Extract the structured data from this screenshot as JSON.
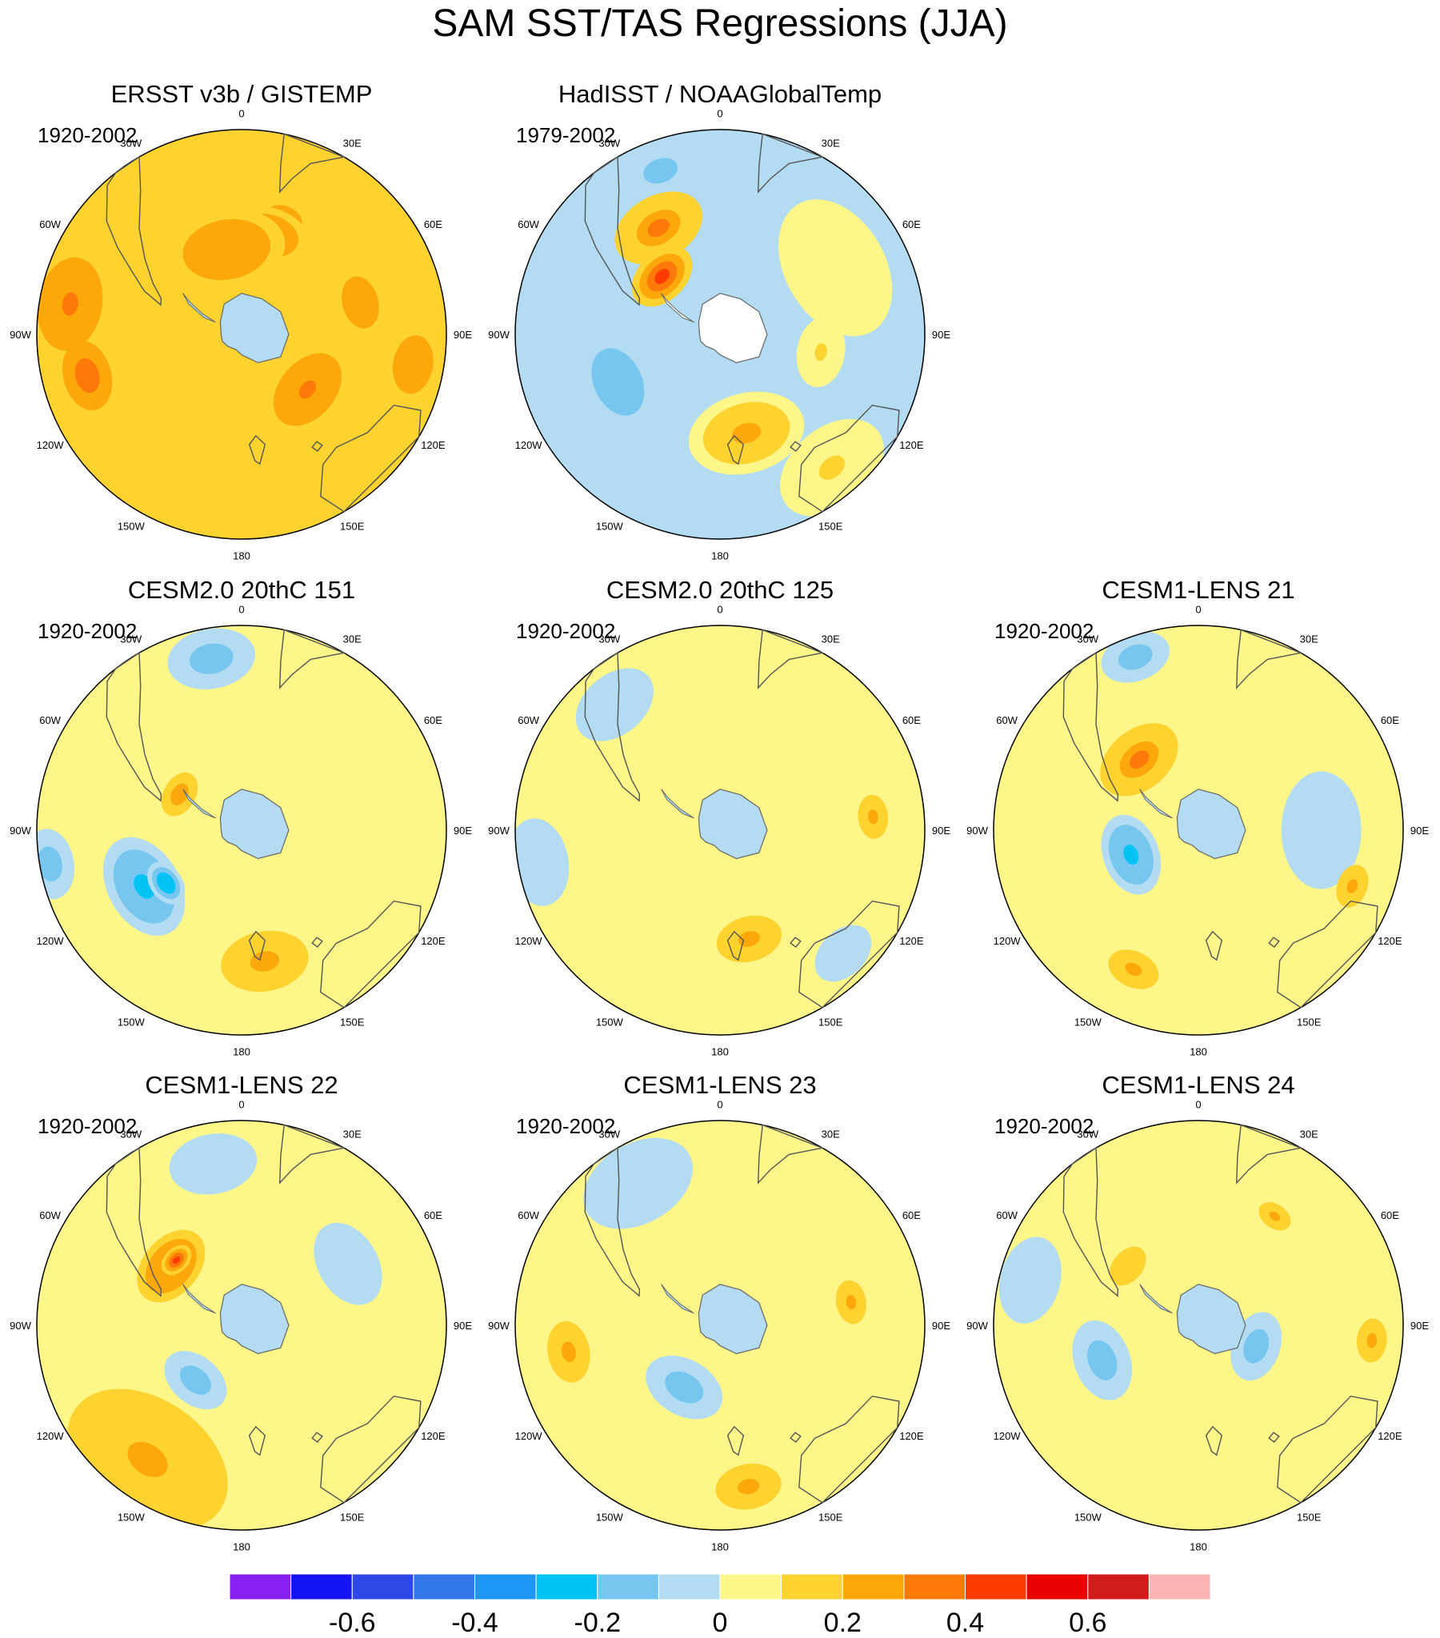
{
  "chart_data": {
    "type": "heatmap",
    "title": "SAM SST/TAS Regressions (JJA)",
    "projection": "south-polar-stereographic",
    "longitude_labels": [
      "0",
      "30E",
      "60E",
      "90E",
      "120E",
      "150E",
      "180",
      "150W",
      "120W",
      "90W",
      "60W",
      "30W"
    ],
    "colorbar": {
      "colors": [
        "#8a1ff2",
        "#1414f5",
        "#2e47e6",
        "#3278e8",
        "#1e96f5",
        "#00c3f5",
        "#76c6f0",
        "#b3dcf2",
        "#fff68a",
        "#fed330",
        "#fda80a",
        "#fd7a0a",
        "#fe3c00",
        "#ea0000",
        "#d21c1c",
        "#fcb4b4"
      ],
      "levels": [
        -0.7,
        -0.6,
        -0.5,
        -0.4,
        -0.3,
        -0.2,
        -0.1,
        0,
        0.1,
        0.2,
        0.3,
        0.4,
        0.5,
        0.6,
        0.7
      ],
      "tick_values": [
        -0.6,
        -0.4,
        -0.2,
        0,
        0.2,
        0.4,
        0.6
      ],
      "tick_labels": [
        "-0.6",
        "-0.4",
        "-0.2",
        "0",
        "0.2",
        "0.4",
        "0.6"
      ]
    },
    "panels": [
      {
        "title": "ERSST v3b / GISTEMP",
        "period": "1920-2002",
        "base": 0.15,
        "features": [
          {
            "lon": 20,
            "r": 0.6,
            "rad": 0.26,
            "v": 0.2
          },
          {
            "lon": 15,
            "r": 0.5,
            "rad": 0.14,
            "v": 0.25
          },
          {
            "lon": -80,
            "r": 0.85,
            "rad": 0.16,
            "v": 0.3
          },
          {
            "lon": -105,
            "r": 0.78,
            "rad": 0.12,
            "v": 0.38
          },
          {
            "lon": 130,
            "r": 0.42,
            "rad": 0.14,
            "v": 0.32
          },
          {
            "lon": 75,
            "r": 0.6,
            "rad": 0.12,
            "v": 0.26
          },
          {
            "lon": -10,
            "r": 0.42,
            "rad": 0.2,
            "v": 0.25
          },
          {
            "lon": -160,
            "r": 0.8,
            "rad": 0.18,
            "v": 0.05
          },
          {
            "lon": 100,
            "r": 0.85,
            "rad": 0.2,
            "v": 0.22
          }
        ]
      },
      {
        "title": "HadISST / NOAAGlobalTemp",
        "period": "1979-2002",
        "base": -0.02,
        "features": [
          {
            "lon": -30,
            "r": 0.6,
            "rad": 0.16,
            "v": 0.35
          },
          {
            "lon": -45,
            "r": 0.4,
            "rad": 0.12,
            "v": 0.4
          },
          {
            "lon": 165,
            "r": 0.5,
            "rad": 0.2,
            "v": 0.25
          },
          {
            "lon": -115,
            "r": 0.55,
            "rad": 0.16,
            "v": -0.18
          },
          {
            "lon": -20,
            "r": 0.85,
            "rad": 0.12,
            "v": -0.16
          },
          {
            "lon": 100,
            "r": 0.5,
            "rad": 0.12,
            "v": 0.12
          },
          {
            "lon": 60,
            "r": 0.65,
            "rad": 0.25,
            "v": 0.08
          },
          {
            "lon": 140,
            "r": 0.85,
            "rad": 0.2,
            "v": 0.1
          }
        ]
      },
      {
        "title": "CESM2.0 20thC 151",
        "period": "1920-2002",
        "base": 0.02,
        "features": [
          {
            "lon": -120,
            "r": 0.55,
            "rad": 0.18,
            "v": -0.22
          },
          {
            "lon": -125,
            "r": 0.45,
            "rad": 0.08,
            "v": -0.28
          },
          {
            "lon": 170,
            "r": 0.65,
            "rad": 0.2,
            "v": 0.22
          },
          {
            "lon": -60,
            "r": 0.35,
            "rad": 0.08,
            "v": 0.25
          },
          {
            "lon": -10,
            "r": 0.85,
            "rad": 0.15,
            "v": -0.14
          },
          {
            "lon": -100,
            "r": 0.95,
            "rad": 0.12,
            "v": -0.18
          },
          {
            "lon": 70,
            "r": 0.7,
            "rad": 0.2,
            "v": 0.06
          }
        ]
      },
      {
        "title": "CESM2.0 20thC 125",
        "period": "1920-2002",
        "base": 0.04,
        "features": [
          {
            "lon": 85,
            "r": 0.75,
            "rad": 0.1,
            "v": 0.2
          },
          {
            "lon": 165,
            "r": 0.55,
            "rad": 0.15,
            "v": 0.2
          },
          {
            "lon": -100,
            "r": 0.9,
            "rad": 0.2,
            "v": -0.05
          },
          {
            "lon": 135,
            "r": 0.85,
            "rad": 0.15,
            "v": -0.05
          },
          {
            "lon": -40,
            "r": 0.8,
            "rad": 0.2,
            "v": -0.04
          }
        ]
      },
      {
        "title": "CESM1-LENS 21",
        "period": "1920-2002",
        "base": 0.01,
        "features": [
          {
            "lon": -110,
            "r": 0.35,
            "rad": 0.14,
            "v": -0.25
          },
          {
            "lon": -40,
            "r": 0.45,
            "rad": 0.15,
            "v": 0.3
          },
          {
            "lon": -155,
            "r": 0.75,
            "rad": 0.12,
            "v": 0.2
          },
          {
            "lon": -20,
            "r": 0.9,
            "rad": 0.12,
            "v": -0.15
          },
          {
            "lon": 90,
            "r": 0.6,
            "rad": 0.2,
            "v": -0.04
          },
          {
            "lon": 110,
            "r": 0.8,
            "rad": 0.1,
            "v": 0.2
          }
        ]
      },
      {
        "title": "CESM1-LENS 22",
        "period": "1920-2002",
        "base": 0.05,
        "features": [
          {
            "lon": -50,
            "r": 0.45,
            "rad": 0.14,
            "v": 0.35
          },
          {
            "lon": -45,
            "r": 0.45,
            "rad": 0.06,
            "v": 0.42
          },
          {
            "lon": -140,
            "r": 0.35,
            "rad": 0.12,
            "v": -0.2
          },
          {
            "lon": -145,
            "r": 0.8,
            "rad": 0.3,
            "v": 0.22
          },
          {
            "lon": -10,
            "r": 0.8,
            "rad": 0.2,
            "v": -0.05
          },
          {
            "lon": 60,
            "r": 0.6,
            "rad": 0.3,
            "v": -0.03
          }
        ]
      },
      {
        "title": "CESM1-LENS 23",
        "period": "1920-2002",
        "base": 0.02,
        "features": [
          {
            "lon": -100,
            "r": 0.75,
            "rad": 0.14,
            "v": 0.22
          },
          {
            "lon": -150,
            "r": 0.35,
            "rad": 0.14,
            "v": -0.14
          },
          {
            "lon": 170,
            "r": 0.8,
            "rad": 0.15,
            "v": 0.2
          },
          {
            "lon": 80,
            "r": 0.65,
            "rad": 0.1,
            "v": 0.2
          },
          {
            "lon": -30,
            "r": 0.8,
            "rad": 0.2,
            "v": -0.06
          }
        ]
      },
      {
        "title": "CESM1-LENS 24",
        "period": "1920-2002",
        "base": 0.01,
        "features": [
          {
            "lon": -110,
            "r": 0.5,
            "rad": 0.14,
            "v": -0.18
          },
          {
            "lon": 110,
            "r": 0.3,
            "rad": 0.12,
            "v": -0.18
          },
          {
            "lon": 95,
            "r": 0.85,
            "rad": 0.1,
            "v": 0.2
          },
          {
            "lon": 35,
            "r": 0.65,
            "rad": 0.08,
            "v": 0.2
          },
          {
            "lon": -50,
            "r": 0.45,
            "rad": 0.1,
            "v": 0.18
          },
          {
            "lon": -75,
            "r": 0.85,
            "rad": 0.15,
            "v": -0.06
          }
        ]
      }
    ]
  }
}
